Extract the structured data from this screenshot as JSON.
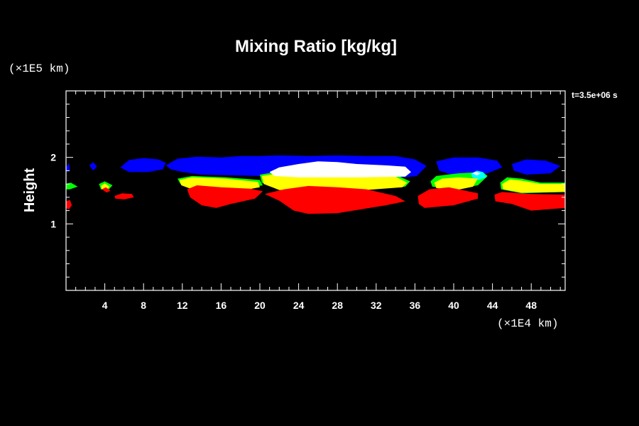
{
  "chart_data": {
    "type": "heatmap",
    "title": "Mixing Ratio [kg/kg]",
    "ylabel": "Height",
    "y_scale_label": "(×1E5 km)",
    "x_scale_label": "(×1E4 km)",
    "time_label": "t=3.5e+06 s",
    "xlim": [
      0,
      51.5
    ],
    "ylim": [
      0,
      3
    ],
    "x_ticks": [
      "4",
      "8",
      "12",
      "16",
      "20",
      "24",
      "28",
      "32",
      "36",
      "40",
      "44",
      "48"
    ],
    "y_ticks": [
      "1",
      "2"
    ],
    "background": "#000000",
    "levels": [
      {
        "color": "#0000ff",
        "regions": [
          [
            [
              0.0,
              1.85
            ],
            [
              0.3,
              1.92
            ],
            [
              0.4,
              1.8
            ],
            [
              0.0,
              1.78
            ]
          ],
          [
            [
              2.4,
              1.88
            ],
            [
              2.8,
              1.93
            ],
            [
              3.2,
              1.86
            ],
            [
              2.8,
              1.8
            ]
          ],
          [
            [
              5.6,
              1.85
            ],
            [
              6.5,
              1.96
            ],
            [
              8.0,
              1.99
            ],
            [
              9.5,
              1.97
            ],
            [
              10.3,
              1.92
            ],
            [
              10.0,
              1.82
            ],
            [
              8.5,
              1.78
            ],
            [
              6.5,
              1.78
            ]
          ],
          [
            [
              10.3,
              1.88
            ],
            [
              11.5,
              1.98
            ],
            [
              13.5,
              2.01
            ],
            [
              16.0,
              2.0
            ],
            [
              18.0,
              2.02
            ],
            [
              20.0,
              2.02
            ],
            [
              22.0,
              2.03
            ],
            [
              25.0,
              2.02
            ],
            [
              28.0,
              2.03
            ],
            [
              31.0,
              2.02
            ],
            [
              34.0,
              2.02
            ],
            [
              36.0,
              1.97
            ],
            [
              37.2,
              1.87
            ],
            [
              36.2,
              1.72
            ],
            [
              35.0,
              1.7
            ],
            [
              20.0,
              1.72
            ],
            [
              14.0,
              1.74
            ],
            [
              12.0,
              1.78
            ],
            [
              10.8,
              1.82
            ]
          ],
          [
            [
              38.2,
              1.94
            ],
            [
              40.0,
              2.0
            ],
            [
              42.5,
              2.0
            ],
            [
              44.5,
              1.95
            ],
            [
              45.0,
              1.85
            ],
            [
              43.5,
              1.76
            ],
            [
              40.0,
              1.73
            ],
            [
              38.5,
              1.8
            ]
          ],
          [
            [
              46.0,
              1.9
            ],
            [
              47.5,
              1.97
            ],
            [
              49.5,
              1.95
            ],
            [
              51.0,
              1.87
            ],
            [
              50.0,
              1.76
            ],
            [
              47.5,
              1.74
            ],
            [
              46.2,
              1.8
            ]
          ]
        ]
      },
      {
        "color": "#00ff00",
        "regions": [
          [
            [
              0.0,
              1.6
            ],
            [
              0.5,
              1.62
            ],
            [
              1.2,
              1.56
            ],
            [
              0.4,
              1.52
            ],
            [
              0.0,
              1.52
            ]
          ],
          [
            [
              3.4,
              1.6
            ],
            [
              4.0,
              1.64
            ],
            [
              4.8,
              1.58
            ],
            [
              4.3,
              1.5
            ],
            [
              3.6,
              1.52
            ]
          ],
          [
            [
              11.5,
              1.68
            ],
            [
              13.0,
              1.72
            ],
            [
              16.5,
              1.7
            ],
            [
              20.0,
              1.66
            ],
            [
              20.3,
              1.58
            ],
            [
              18.0,
              1.52
            ],
            [
              13.0,
              1.54
            ],
            [
              11.8,
              1.6
            ]
          ],
          [
            [
              20.0,
              1.74
            ],
            [
              22.5,
              1.8
            ],
            [
              26.0,
              1.83
            ],
            [
              30.0,
              1.8
            ],
            [
              34.0,
              1.74
            ],
            [
              35.5,
              1.64
            ],
            [
              35.0,
              1.56
            ],
            [
              30.0,
              1.52
            ],
            [
              22.0,
              1.52
            ],
            [
              20.2,
              1.62
            ]
          ],
          [
            [
              37.6,
              1.64
            ],
            [
              38.2,
              1.72
            ],
            [
              40.5,
              1.76
            ],
            [
              43.0,
              1.78
            ],
            [
              43.5,
              1.72
            ],
            [
              42.5,
              1.58
            ],
            [
              40.0,
              1.52
            ],
            [
              37.8,
              1.56
            ]
          ],
          [
            [
              44.8,
              1.62
            ],
            [
              45.5,
              1.7
            ],
            [
              47.0,
              1.68
            ],
            [
              49.0,
              1.62
            ],
            [
              51.5,
              1.62
            ],
            [
              51.5,
              1.48
            ],
            [
              47.0,
              1.46
            ],
            [
              44.9,
              1.52
            ]
          ]
        ]
      },
      {
        "color": "#00ffff",
        "regions": [
          [
            [
              41.8,
              1.76
            ],
            [
              42.4,
              1.8
            ],
            [
              43.0,
              1.78
            ],
            [
              43.4,
              1.7
            ],
            [
              42.5,
              1.66
            ],
            [
              41.9,
              1.7
            ]
          ]
        ]
      },
      {
        "color": "#ffff00",
        "regions": [
          [
            [
              3.6,
              1.57
            ],
            [
              4.0,
              1.61
            ],
            [
              4.5,
              1.56
            ],
            [
              4.1,
              1.5
            ],
            [
              3.7,
              1.52
            ]
          ],
          [
            [
              11.7,
              1.66
            ],
            [
              13.0,
              1.7
            ],
            [
              16.5,
              1.68
            ],
            [
              19.8,
              1.63
            ],
            [
              20.0,
              1.55
            ],
            [
              18.0,
              1.5
            ],
            [
              13.0,
              1.52
            ],
            [
              11.9,
              1.58
            ]
          ],
          [
            [
              20.2,
              1.72
            ],
            [
              22.5,
              1.77
            ],
            [
              26.0,
              1.8
            ],
            [
              30.0,
              1.78
            ],
            [
              34.0,
              1.71
            ],
            [
              35.2,
              1.62
            ],
            [
              34.7,
              1.55
            ],
            [
              30.0,
              1.5
            ],
            [
              22.0,
              1.51
            ],
            [
              20.4,
              1.6
            ]
          ],
          [
            [
              38.0,
              1.62
            ],
            [
              38.8,
              1.68
            ],
            [
              40.5,
              1.7
            ],
            [
              42.5,
              1.68
            ],
            [
              42.0,
              1.56
            ],
            [
              40.0,
              1.5
            ],
            [
              38.2,
              1.54
            ]
          ],
          [
            [
              45.0,
              1.6
            ],
            [
              45.8,
              1.67
            ],
            [
              47.0,
              1.65
            ],
            [
              49.0,
              1.6
            ],
            [
              51.5,
              1.6
            ],
            [
              51.5,
              1.48
            ],
            [
              47.0,
              1.47
            ],
            [
              45.1,
              1.52
            ]
          ]
        ]
      },
      {
        "color": "#ffffff",
        "regions": [
          [
            [
              21.0,
              1.78
            ],
            [
              22.0,
              1.85
            ],
            [
              24.0,
              1.9
            ],
            [
              26.0,
              1.94
            ],
            [
              28.0,
              1.93
            ],
            [
              30.0,
              1.9
            ],
            [
              33.0,
              1.88
            ],
            [
              35.0,
              1.86
            ],
            [
              35.6,
              1.78
            ],
            [
              35.0,
              1.71
            ],
            [
              30.0,
              1.7
            ],
            [
              24.0,
              1.7
            ],
            [
              21.5,
              1.72
            ]
          ],
          [
            [
              41.9,
              1.76
            ],
            [
              42.3,
              1.78
            ],
            [
              42.8,
              1.76
            ],
            [
              42.4,
              1.73
            ]
          ]
        ]
      },
      {
        "color": "#ff0000",
        "regions": [
          [
            [
              0.0,
              1.34
            ],
            [
              0.4,
              1.36
            ],
            [
              0.6,
              1.28
            ],
            [
              0.3,
              1.22
            ],
            [
              0.0,
              1.24
            ]
          ],
          [
            [
              3.7,
              1.52
            ],
            [
              4.1,
              1.55
            ],
            [
              4.6,
              1.5
            ],
            [
              4.2,
              1.47
            ]
          ],
          [
            [
              5.0,
              1.42
            ],
            [
              5.8,
              1.46
            ],
            [
              6.8,
              1.45
            ],
            [
              7.0,
              1.4
            ],
            [
              6.0,
              1.37
            ],
            [
              5.1,
              1.38
            ]
          ],
          [
            [
              12.5,
              1.52
            ],
            [
              13.5,
              1.58
            ],
            [
              16.0,
              1.55
            ],
            [
              19.0,
              1.53
            ],
            [
              20.3,
              1.49
            ],
            [
              19.5,
              1.38
            ],
            [
              17.0,
              1.3
            ],
            [
              15.5,
              1.24
            ],
            [
              14.0,
              1.28
            ],
            [
              12.8,
              1.4
            ]
          ],
          [
            [
              22.5,
              1.52
            ],
            [
              25.0,
              1.57
            ],
            [
              28.0,
              1.55
            ],
            [
              31.0,
              1.52
            ],
            [
              34.0,
              1.42
            ],
            [
              35.0,
              1.34
            ],
            [
              33.0,
              1.28
            ],
            [
              28.0,
              1.16
            ],
            [
              25.0,
              1.15
            ],
            [
              23.5,
              1.2
            ],
            [
              22.0,
              1.35
            ],
            [
              20.5,
              1.45
            ]
          ],
          [
            [
              36.3,
              1.42
            ],
            [
              37.5,
              1.52
            ],
            [
              39.5,
              1.55
            ],
            [
              42.5,
              1.46
            ],
            [
              42.5,
              1.38
            ],
            [
              40.0,
              1.28
            ],
            [
              37.0,
              1.24
            ],
            [
              36.4,
              1.3
            ]
          ],
          [
            [
              44.2,
              1.44
            ],
            [
              45.0,
              1.48
            ],
            [
              48.0,
              1.45
            ],
            [
              51.5,
              1.44
            ],
            [
              51.5,
              1.24
            ],
            [
              48.0,
              1.2
            ],
            [
              46.0,
              1.3
            ],
            [
              44.3,
              1.34
            ]
          ]
        ]
      }
    ]
  }
}
